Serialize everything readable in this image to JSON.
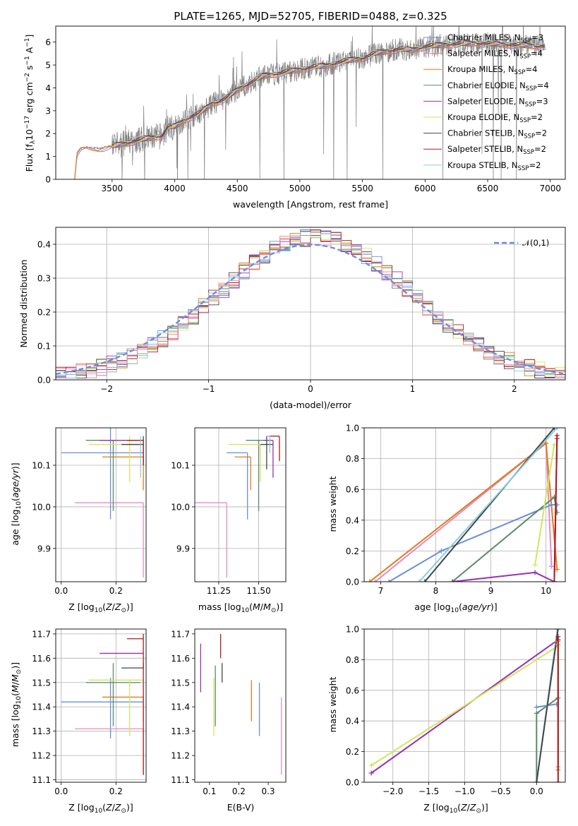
{
  "palette": {
    "chabrier_miles": "#6b8fd6",
    "salpeter_miles": "#f07f7f",
    "kroupa_miles": "#e07b1a",
    "chabrier_elodie": "#5a8a6a",
    "salpeter_elodie": "#9b30b0",
    "kroupa_elodie": "#cfe85a",
    "chabrier_stelib": "#454545",
    "salpeter_stelib": "#b01a1a",
    "kroupa_stelib": "#86cfe0",
    "pink": "#e88ac4",
    "data_grey": "#808080",
    "normal_curve": "#6b8fd6"
  },
  "chart_data": [
    {
      "id": "spectrum",
      "type": "line",
      "title": "PLATE=1265, MJD=52705, FIBERID=0488, z=0.325",
      "xlabel": "wavelength [Angstrom, rest frame]",
      "ylabel": "Flux [f_λ 10^-17 erg cm^-2 s^-1 A^-1]",
      "xlim": [
        3050,
        7120
      ],
      "ylim": [
        0,
        6.7
      ],
      "xticks": [
        3500,
        4000,
        4500,
        5000,
        5500,
        6000,
        6500,
        7000
      ],
      "yticks": [
        0,
        1,
        2,
        3,
        4,
        5,
        6
      ],
      "legend_position": "top-right",
      "series": [
        {
          "name": "Chabrier MILES, N_SSP=3",
          "color_key": "chabrier_miles"
        },
        {
          "name": "Salpeter MILES, N_SSP=4",
          "color_key": "salpeter_miles"
        },
        {
          "name": "Kroupa MILES, N_SSP=4",
          "color_key": "kroupa_miles"
        },
        {
          "name": "Chabrier ELODIE, N_SSP=4",
          "color_key": "chabrier_elodie"
        },
        {
          "name": "Salpeter ELODIE, N_SSP=3",
          "color_key": "salpeter_elodie"
        },
        {
          "name": "Kroupa ELODIE, N_SSP=2",
          "color_key": "kroupa_elodie"
        },
        {
          "name": "Chabrier STELIB, N_SSP=2",
          "color_key": "chabrier_stelib"
        },
        {
          "name": "Salpeter STELIB, N_SSP=2",
          "color_key": "salpeter_stelib"
        },
        {
          "name": "Kroupa STELIB, N_SSP=2",
          "color_key": "kroupa_stelib"
        }
      ],
      "continuum": {
        "x": [
          3200,
          3220,
          3250,
          3300,
          3400,
          3500,
          3600,
          3700,
          3800,
          3900,
          3950,
          4000,
          4100,
          4200,
          4300,
          4400,
          4500,
          4600,
          4700,
          4800,
          4900,
          5000,
          5100,
          5200,
          5300,
          5400,
          5500,
          5600,
          5700,
          5800,
          5900,
          6000,
          6200,
          6400,
          6600,
          6800,
          6960
        ],
        "y": [
          0.0,
          1.15,
          1.35,
          1.4,
          1.35,
          1.45,
          1.55,
          1.7,
          1.8,
          1.9,
          2.3,
          2.3,
          2.65,
          2.9,
          3.3,
          3.5,
          3.9,
          4.2,
          4.5,
          4.6,
          4.7,
          4.8,
          4.9,
          4.95,
          5.1,
          5.2,
          5.3,
          5.5,
          5.6,
          5.7,
          5.65,
          5.8,
          5.9,
          5.95,
          5.9,
          5.85,
          5.8
        ]
      }
    },
    {
      "id": "residuals",
      "type": "line",
      "xlabel": "(data-model)/error",
      "ylabel": "Normed distribution",
      "xlim": [
        -2.5,
        2.5
      ],
      "ylim": [
        0,
        0.45
      ],
      "xticks": [
        -2,
        -1,
        0,
        1,
        2
      ],
      "yticks": [
        0.0,
        0.1,
        0.2,
        0.3,
        0.4
      ],
      "legend": "𝒩(0,1)",
      "legend_position": "top-right"
    },
    {
      "id": "age_vs_Z",
      "type": "scatter",
      "xlabel": "Z [log10(Z/Z⊙)]",
      "ylabel": "age [log10(age/yr)]",
      "xlim": [
        -0.02,
        0.31
      ],
      "ylim": [
        9.82,
        10.19
      ],
      "xticks": [
        0.0,
        0.2
      ],
      "yticks": [
        9.9,
        10.0,
        10.1
      ],
      "points": [
        {
          "color_key": "chabrier_miles",
          "x": 0.18,
          "y": 10.13,
          "xerr": [
            0.18,
            0.12
          ],
          "yerr": [
            0.16,
            0.06
          ]
        },
        {
          "color_key": "pink",
          "x": 0.3,
          "y": 10.01,
          "xerr": [
            0.25,
            0.0
          ],
          "yerr": [
            0.18,
            0.0
          ]
        },
        {
          "color_key": "kroupa_miles",
          "x": 0.3,
          "y": 10.12,
          "xerr": [
            0.15,
            0.0
          ],
          "yerr": [
            0.08,
            0.0
          ]
        },
        {
          "color_key": "chabrier_elodie",
          "x": 0.19,
          "y": 10.16,
          "xerr": [
            0.1,
            0.1
          ],
          "yerr": [
            0.17,
            0.0
          ]
        },
        {
          "color_key": "kroupa_elodie",
          "x": 0.25,
          "y": 10.15,
          "xerr": [
            0.15,
            0.05
          ],
          "yerr": [
            0.09,
            0.02
          ]
        },
        {
          "color_key": "salpeter_elodie",
          "x": 0.28,
          "y": 10.16,
          "xerr": [
            0.14,
            0.02
          ],
          "yerr": [
            0.0,
            0.0
          ]
        },
        {
          "color_key": "chabrier_stelib",
          "x": 0.3,
          "y": 10.15,
          "xerr": [
            0.08,
            0.0
          ],
          "yerr": [
            0.05,
            0.02
          ]
        },
        {
          "color_key": "salpeter_stelib",
          "x": 0.3,
          "y": 10.16,
          "xerr": [
            0.06,
            0.0
          ],
          "yerr": [
            0.06,
            0.0
          ]
        },
        {
          "color_key": "kroupa_stelib",
          "x": 0.29,
          "y": 10.17,
          "xerr": [
            0.0,
            0.0
          ],
          "yerr": [
            0.1,
            0.0
          ]
        }
      ]
    },
    {
      "id": "age_vs_mass",
      "type": "scatter",
      "xlabel": "mass [log10(M/M⊙)]",
      "xlim": [
        11.1,
        11.67
      ],
      "ylim": [
        9.82,
        10.19
      ],
      "xticks": [
        11.25,
        11.5
      ],
      "yticks": [
        9.9,
        10.0,
        10.1
      ],
      "points": [
        {
          "color_key": "pink",
          "x": 11.3,
          "y": 10.01,
          "xerr": [
            0.2,
            0.0
          ],
          "yerr": [
            0.18,
            0.0
          ]
        },
        {
          "color_key": "chabrier_miles",
          "x": 11.43,
          "y": 10.13,
          "xerr": [
            0.13,
            0.0
          ],
          "yerr": [
            0.16,
            0.0
          ]
        },
        {
          "color_key": "kroupa_miles",
          "x": 11.45,
          "y": 10.12,
          "xerr": [
            0.1,
            0.0
          ],
          "yerr": [
            0.08,
            0.0
          ]
        },
        {
          "color_key": "chabrier_elodie",
          "x": 11.5,
          "y": 10.16,
          "xerr": [
            0.08,
            0.06
          ],
          "yerr": [
            0.17,
            0.0
          ]
        },
        {
          "color_key": "kroupa_elodie",
          "x": 11.51,
          "y": 10.15,
          "xerr": [
            0.2,
            0.0
          ],
          "yerr": [
            0.09,
            0.0
          ]
        },
        {
          "color_key": "chabrier_stelib",
          "x": 11.55,
          "y": 10.15,
          "xerr": [
            0.04,
            0.04
          ],
          "yerr": [
            0.06,
            0.02
          ]
        },
        {
          "color_key": "salpeter_elodie",
          "x": 11.59,
          "y": 10.16,
          "xerr": [
            0.06,
            0.0
          ],
          "yerr": [
            0.09,
            0.0
          ]
        },
        {
          "color_key": "salpeter_stelib",
          "x": 11.63,
          "y": 10.17,
          "xerr": [
            0.07,
            0.0
          ],
          "yerr": [
            0.06,
            0.0
          ]
        },
        {
          "color_key": "kroupa_stelib",
          "x": 11.57,
          "y": 10.17,
          "xerr": [
            0.02,
            0.0
          ],
          "yerr": [
            0.04,
            0.0
          ]
        }
      ]
    },
    {
      "id": "massweight_vs_age",
      "type": "line",
      "xlabel": "age [log10(age/yr)]",
      "ylabel": "mass weight",
      "xlim": [
        6.7,
        10.35
      ],
      "ylim": [
        0,
        1.0
      ],
      "xticks": [
        7,
        8,
        9,
        10
      ],
      "yticks": [
        0.0,
        0.2,
        0.4,
        0.6,
        0.8,
        1.0
      ],
      "series": [
        {
          "color_key": "pink",
          "x": [
            6.9,
            10.0,
            10.1
          ],
          "y": [
            0.0,
            0.9,
            0.1
          ]
        },
        {
          "color_key": "kroupa_miles",
          "x": [
            6.8,
            10.0,
            10.2
          ],
          "y": [
            0.0,
            0.9,
            0.08
          ]
        },
        {
          "color_key": "chabrier_miles",
          "x": [
            7.15,
            8.1,
            10.1,
            10.2
          ],
          "y": [
            0.0,
            0.2,
            0.5,
            0.5
          ]
        },
        {
          "color_key": "chabrier_stelib",
          "x": [
            7.8,
            10.15
          ],
          "y": [
            0.0,
            1.0
          ]
        },
        {
          "color_key": "kroupa_stelib",
          "x": [
            7.7,
            10.2
          ],
          "y": [
            0.0,
            1.0
          ]
        },
        {
          "color_key": "chabrier_elodie",
          "x": [
            8.3,
            10.15,
            10.2
          ],
          "y": [
            0.0,
            0.55,
            0.45
          ]
        },
        {
          "color_key": "salpeter_elodie",
          "x": [
            8.3,
            9.8,
            10.15,
            10.2
          ],
          "y": [
            0.0,
            0.06,
            0.0,
            0.93
          ]
        },
        {
          "color_key": "kroupa_elodie",
          "x": [
            9.8,
            10.15
          ],
          "y": [
            0.11,
            0.89
          ]
        },
        {
          "color_key": "salpeter_stelib",
          "x": [
            10.15,
            10.2
          ],
          "y": [
            0.0,
            0.95
          ]
        }
      ]
    },
    {
      "id": "mass_vs_Z",
      "type": "scatter",
      "xlabel": "Z [log10(Z/Z⊙)]",
      "ylabel": "mass [log10(M/M⊙)]",
      "xlim": [
        -0.02,
        0.31
      ],
      "ylim": [
        11.09,
        11.72
      ],
      "xticks": [
        0.0,
        0.2
      ],
      "yticks": [
        11.1,
        11.2,
        11.3,
        11.4,
        11.5,
        11.6,
        11.7
      ],
      "points": [
        {
          "color_key": "chabrier_miles",
          "x": 0.18,
          "y": 11.42,
          "xerr": [
            0.18,
            0.12
          ],
          "yerr": [
            0.15,
            0.1
          ]
        },
        {
          "color_key": "pink",
          "x": 0.3,
          "y": 11.31,
          "xerr": [
            0.25,
            0.0
          ],
          "yerr": [
            0.19,
            0.0
          ]
        },
        {
          "color_key": "kroupa_miles",
          "x": 0.3,
          "y": 11.44,
          "xerr": [
            0.15,
            0.0
          ],
          "yerr": [
            0.1,
            0.0
          ]
        },
        {
          "color_key": "chabrier_elodie",
          "x": 0.19,
          "y": 11.5,
          "xerr": [
            0.1,
            0.1
          ],
          "yerr": [
            0.18,
            0.08
          ]
        },
        {
          "color_key": "kroupa_elodie",
          "x": 0.25,
          "y": 11.51,
          "xerr": [
            0.15,
            0.05
          ],
          "yerr": [
            0.23,
            0.0
          ]
        },
        {
          "color_key": "salpeter_elodie",
          "x": 0.28,
          "y": 11.62,
          "xerr": [
            0.14,
            0.02
          ],
          "yerr": [
            0.0,
            0.0
          ]
        },
        {
          "color_key": "chabrier_stelib",
          "x": 0.3,
          "y": 11.56,
          "xerr": [
            0.08,
            0.0
          ],
          "yerr": [
            0.0,
            0.02
          ]
        },
        {
          "color_key": "salpeter_stelib",
          "x": 0.3,
          "y": 11.68,
          "xerr": [
            0.06,
            0.0
          ],
          "yerr": [
            0.56,
            0.02
          ]
        },
        {
          "color_key": "kroupa_stelib",
          "x": 0.29,
          "y": 11.57,
          "xerr": [
            0.0,
            0.0
          ],
          "yerr": [
            0.0,
            0.0
          ]
        }
      ]
    },
    {
      "id": "mass_vs_ebv",
      "type": "scatter",
      "xlabel": "E(B-V)",
      "xlim": [
        0.05,
        0.36
      ],
      "ylim": [
        11.09,
        11.72
      ],
      "xticks": [
        0.1,
        0.2,
        0.3
      ],
      "yticks": [
        11.1,
        11.2,
        11.3,
        11.4,
        11.5,
        11.6,
        11.7
      ],
      "points": [
        {
          "color_key": "salpeter_elodie",
          "x": 0.07,
          "y": 11.56,
          "yerr": [
            0.1,
            0.1
          ]
        },
        {
          "color_key": "kroupa_elodie",
          "x": 0.115,
          "y": 11.4,
          "yerr": [
            0.12,
            0.12
          ]
        },
        {
          "color_key": "chabrier_elodie",
          "x": 0.12,
          "y": 11.45,
          "yerr": [
            0.13,
            0.12
          ]
        },
        {
          "color_key": "salpeter_stelib",
          "x": 0.138,
          "y": 11.65,
          "yerr": [
            0.05,
            0.05
          ]
        },
        {
          "color_key": "chabrier_stelib",
          "x": 0.143,
          "y": 11.54,
          "yerr": [
            0.04,
            0.04
          ]
        },
        {
          "color_key": "kroupa_miles",
          "x": 0.243,
          "y": 11.43,
          "yerr": [
            0.09,
            0.08
          ]
        },
        {
          "color_key": "chabrier_miles",
          "x": 0.27,
          "y": 11.39,
          "yerr": [
            0.11,
            0.11
          ]
        },
        {
          "color_key": "pink",
          "x": 0.345,
          "y": 11.28,
          "yerr": [
            0.16,
            0.16
          ]
        }
      ]
    },
    {
      "id": "massweight_vs_Z",
      "type": "line",
      "xlabel": "Z [log10(Z/Z⊙)]",
      "ylabel": "mass weight",
      "xlim": [
        -2.4,
        0.4
      ],
      "ylim": [
        0,
        1.0
      ],
      "xticks": [
        -2.0,
        -1.5,
        -1.0,
        -0.5,
        0.0
      ],
      "yticks": [
        0.0,
        0.2,
        0.4,
        0.6,
        0.8,
        1.0
      ],
      "series": [
        {
          "color_key": "salpeter_elodie",
          "x": [
            -2.3,
            0.3
          ],
          "y": [
            0.06,
            0.93
          ]
        },
        {
          "color_key": "kroupa_elodie",
          "x": [
            -2.3,
            0.3
          ],
          "y": [
            0.11,
            0.89
          ]
        },
        {
          "color_key": "chabrier_miles",
          "x": [
            0.0,
            0.28
          ],
          "y": [
            0.49,
            0.51
          ]
        },
        {
          "color_key": "chabrier_elodie",
          "x": [
            0.0,
            0.0,
            0.3
          ],
          "y": [
            0.0,
            0.45,
            0.55
          ]
        },
        {
          "color_key": "kroupa_stelib",
          "x": [
            0.0,
            0.29
          ],
          "y": [
            0.0,
            1.0
          ]
        },
        {
          "color_key": "chabrier_stelib",
          "x": [
            0.0,
            0.3
          ],
          "y": [
            0.0,
            1.0
          ]
        },
        {
          "color_key": "pink",
          "x": [
            0.3,
            0.3
          ],
          "y": [
            0.1,
            0.9
          ]
        },
        {
          "color_key": "kroupa_miles",
          "x": [
            0.3,
            0.3
          ],
          "y": [
            0.08,
            0.92
          ]
        },
        {
          "color_key": "salpeter_stelib",
          "x": [
            0.3,
            0.3
          ],
          "y": [
            0.0,
            0.95
          ]
        }
      ]
    }
  ]
}
